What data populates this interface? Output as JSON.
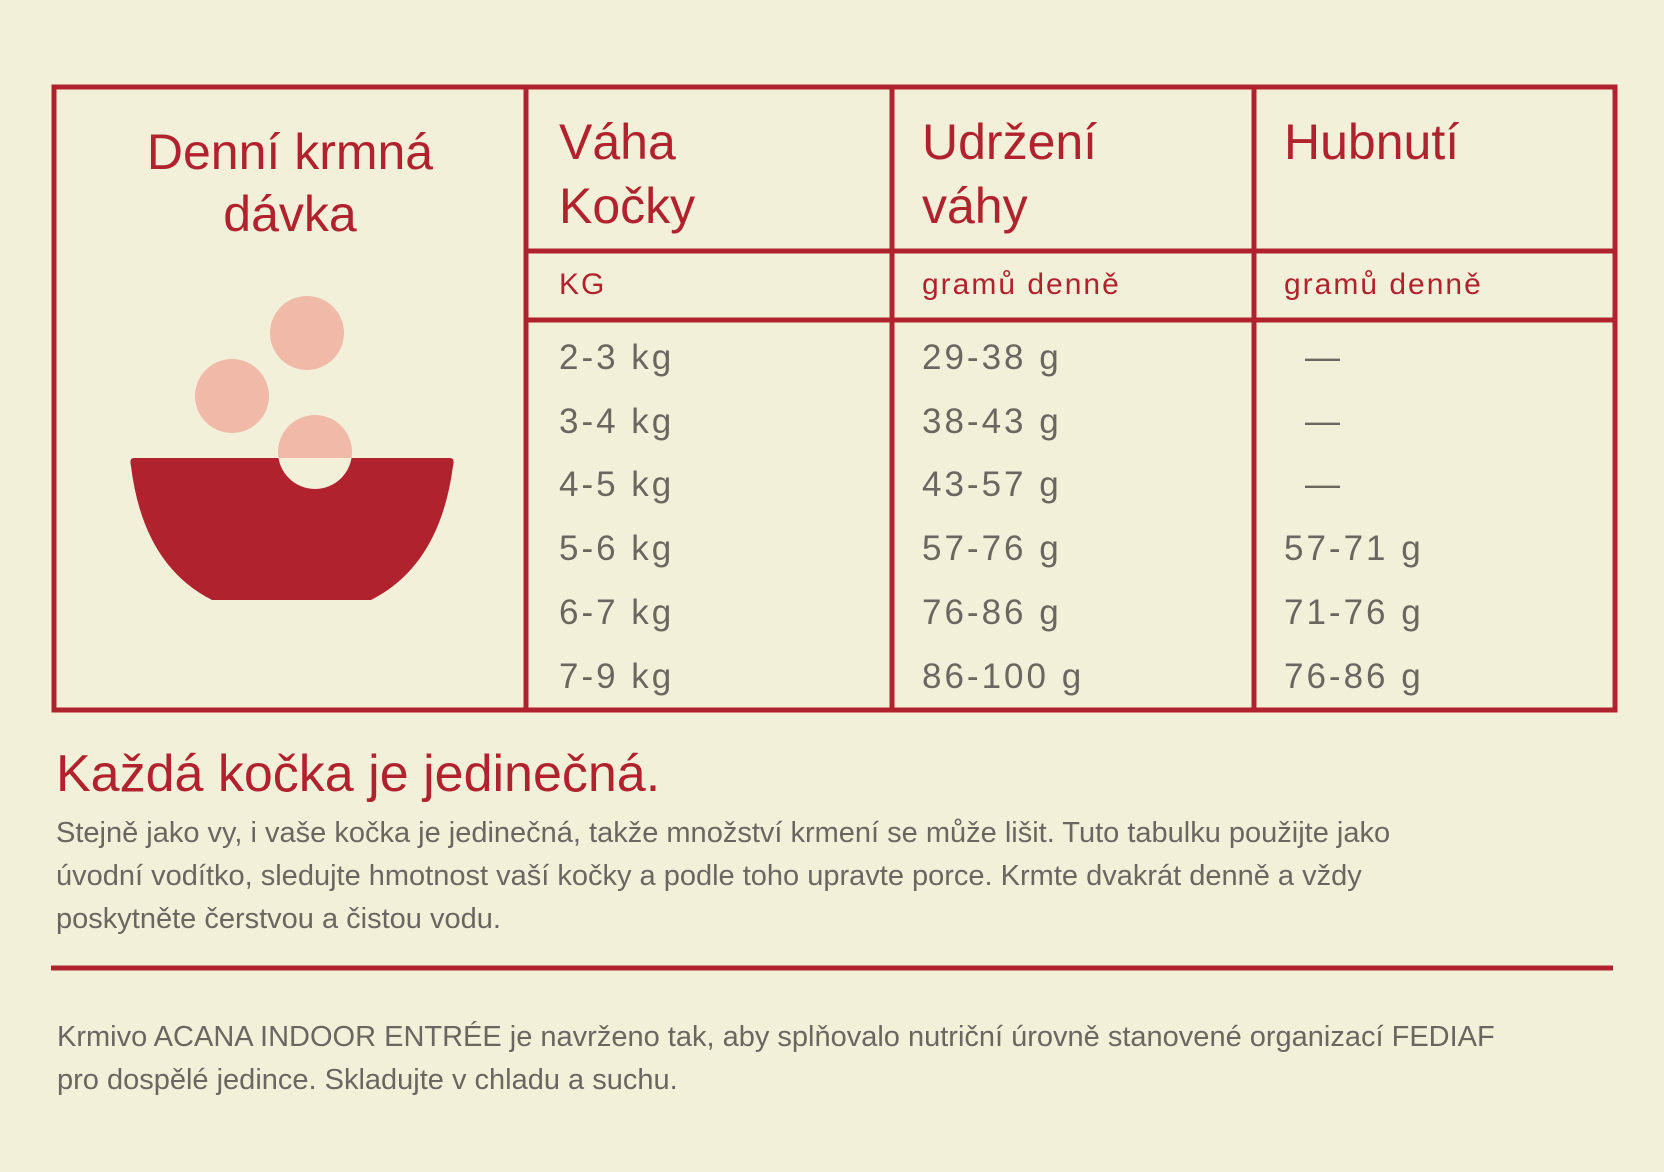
{
  "table": {
    "corner_title": "Denní krmná\ndávka",
    "header": [
      "Váha\nKočky",
      "Udržení\nváhy",
      "Hubnutí"
    ],
    "units": [
      "KG",
      "gramů denně",
      "gramů denně"
    ],
    "rows": [
      [
        "2-3 kg",
        "29-38 g",
        "—"
      ],
      [
        "3-4 kg",
        "38-43 g",
        "—"
      ],
      [
        "4-5 kg",
        "43-57 g",
        "—"
      ],
      [
        "5-6 kg",
        "57-76 g",
        "57-71 g"
      ],
      [
        "6-7 kg",
        "76-86 g",
        "71-76 g"
      ],
      [
        "7-9 kg",
        "86-100 g",
        "76-86 g"
      ]
    ]
  },
  "note": {
    "title": "Každá kočka je jedinečná.",
    "lines": [
      "Stejně jako vy, i vaše kočka je jedinečná, takže množství krmení se může lišit. Tuto tabulku použijte jako",
      "úvodní vodítko, sledujte hmotnost vaší kočky a podle toho upravte porce. Krmte dvakrát denně a vždy",
      "poskytněte čerstvou a čistou vodu."
    ]
  },
  "footer": {
    "lines": [
      "Krmivo ACANA INDOOR ENTRÉE je navrženo tak, aby splňovalo nutriční úrovně stanovené organizací FEDIAF",
      "pro dospělé jedince. Skladujte v chladu a suchu."
    ]
  }
}
